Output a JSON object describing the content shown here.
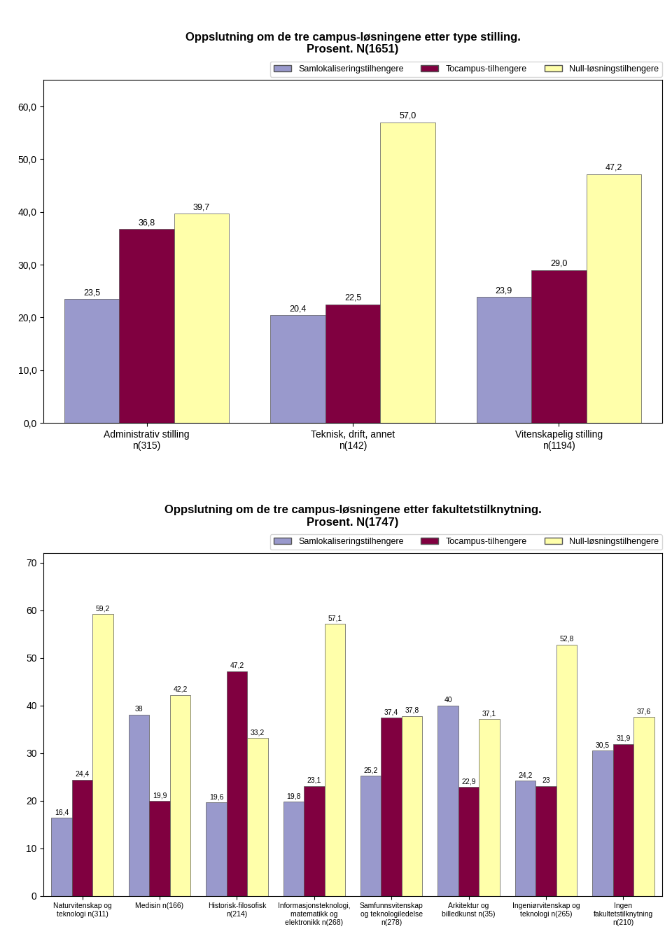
{
  "chart_data": [
    {
      "type": "bar",
      "title": "Oppslutning om de tre campus-løsningene etter type stilling.\nProsent. N(1651)",
      "categories": [
        "Administrativ stilling\nn(315)",
        "Teknisk, drift, annet\nn(142)",
        "Vitenskapelig stilling\nn(1194)"
      ],
      "series": [
        {
          "name": "Samlokaliseringstilhengere",
          "color": "#9999cc",
          "values": [
            23.5,
            20.4,
            23.9
          ],
          "value_labels": [
            "23,5",
            "20,4",
            "23,9"
          ]
        },
        {
          "name": "Tocampus-tilhengere",
          "color": "#800040",
          "values": [
            36.8,
            22.5,
            29.0
          ],
          "value_labels": [
            "36,8",
            "22,5",
            "29,0"
          ]
        },
        {
          "name": "Null-løsningstilhengere",
          "color": "#ffffaa",
          "values": [
            39.7,
            57.0,
            47.2
          ],
          "value_labels": [
            "39,7",
            "57,0",
            "47,2"
          ]
        }
      ],
      "ylim": [
        0,
        65
      ],
      "yticks": [
        {
          "value": 0.0,
          "label": "0,0"
        },
        {
          "value": 10.0,
          "label": "10,0"
        },
        {
          "value": 20.0,
          "label": "20,0"
        },
        {
          "value": 30.0,
          "label": "30,0"
        },
        {
          "value": 40.0,
          "label": "40,0"
        },
        {
          "value": 50.0,
          "label": "50,0"
        },
        {
          "value": 60.0,
          "label": "60,0"
        }
      ],
      "legend": "upper right",
      "data_labels": true
    },
    {
      "type": "bar",
      "title": "Oppslutning om de tre campus-løsningene etter fakultetstilknytning.\nProsent. N(1747)",
      "categories": [
        "Naturvitenskap og\nteknologi n(311)",
        "Medisin n(166)",
        "Historisk-filosofisk\nn(214)",
        "Informasjonsteknologi,\nmatematikk og\nelektronikk n(268)",
        "Samfunnsvitenskap\nog teknologiledelse\nn(278)",
        "Arkitektur og\nbilledkunst n(35)",
        "Ingeniørvitenskap og\nteknologi n(265)",
        "Ingen\nfakultetstilknytning\nn(210)"
      ],
      "series": [
        {
          "name": "Samlokaliseringstilhengere",
          "color": "#9999cc",
          "values": [
            16.4,
            38.0,
            19.6,
            19.8,
            25.2,
            40.0,
            24.2,
            30.5
          ],
          "value_labels": [
            "16,4",
            "38",
            "19,6",
            "19,8",
            "25,2",
            "40",
            "24,2",
            "30,5"
          ]
        },
        {
          "name": "Tocampus-tilhengere",
          "color": "#800040",
          "values": [
            24.4,
            19.9,
            47.2,
            23.1,
            37.4,
            22.9,
            23.0,
            31.9
          ],
          "value_labels": [
            "24,4",
            "19,9",
            "47,2",
            "23,1",
            "37,4",
            "22,9",
            "23",
            "31,9"
          ]
        },
        {
          "name": "Null-løsningstilhengere",
          "color": "#ffffaa",
          "values": [
            59.2,
            42.2,
            33.2,
            57.1,
            37.8,
            37.1,
            52.8,
            37.6
          ],
          "value_labels": [
            "59,2",
            "42,2",
            "33,2",
            "57,1",
            "37,8",
            "37,1",
            "52,8",
            "37,6"
          ]
        }
      ],
      "ylim": [
        0,
        72
      ],
      "yticks": [
        0,
        10,
        20,
        30,
        40,
        50,
        60,
        70
      ],
      "legend": "upper right",
      "data_labels": true
    }
  ]
}
